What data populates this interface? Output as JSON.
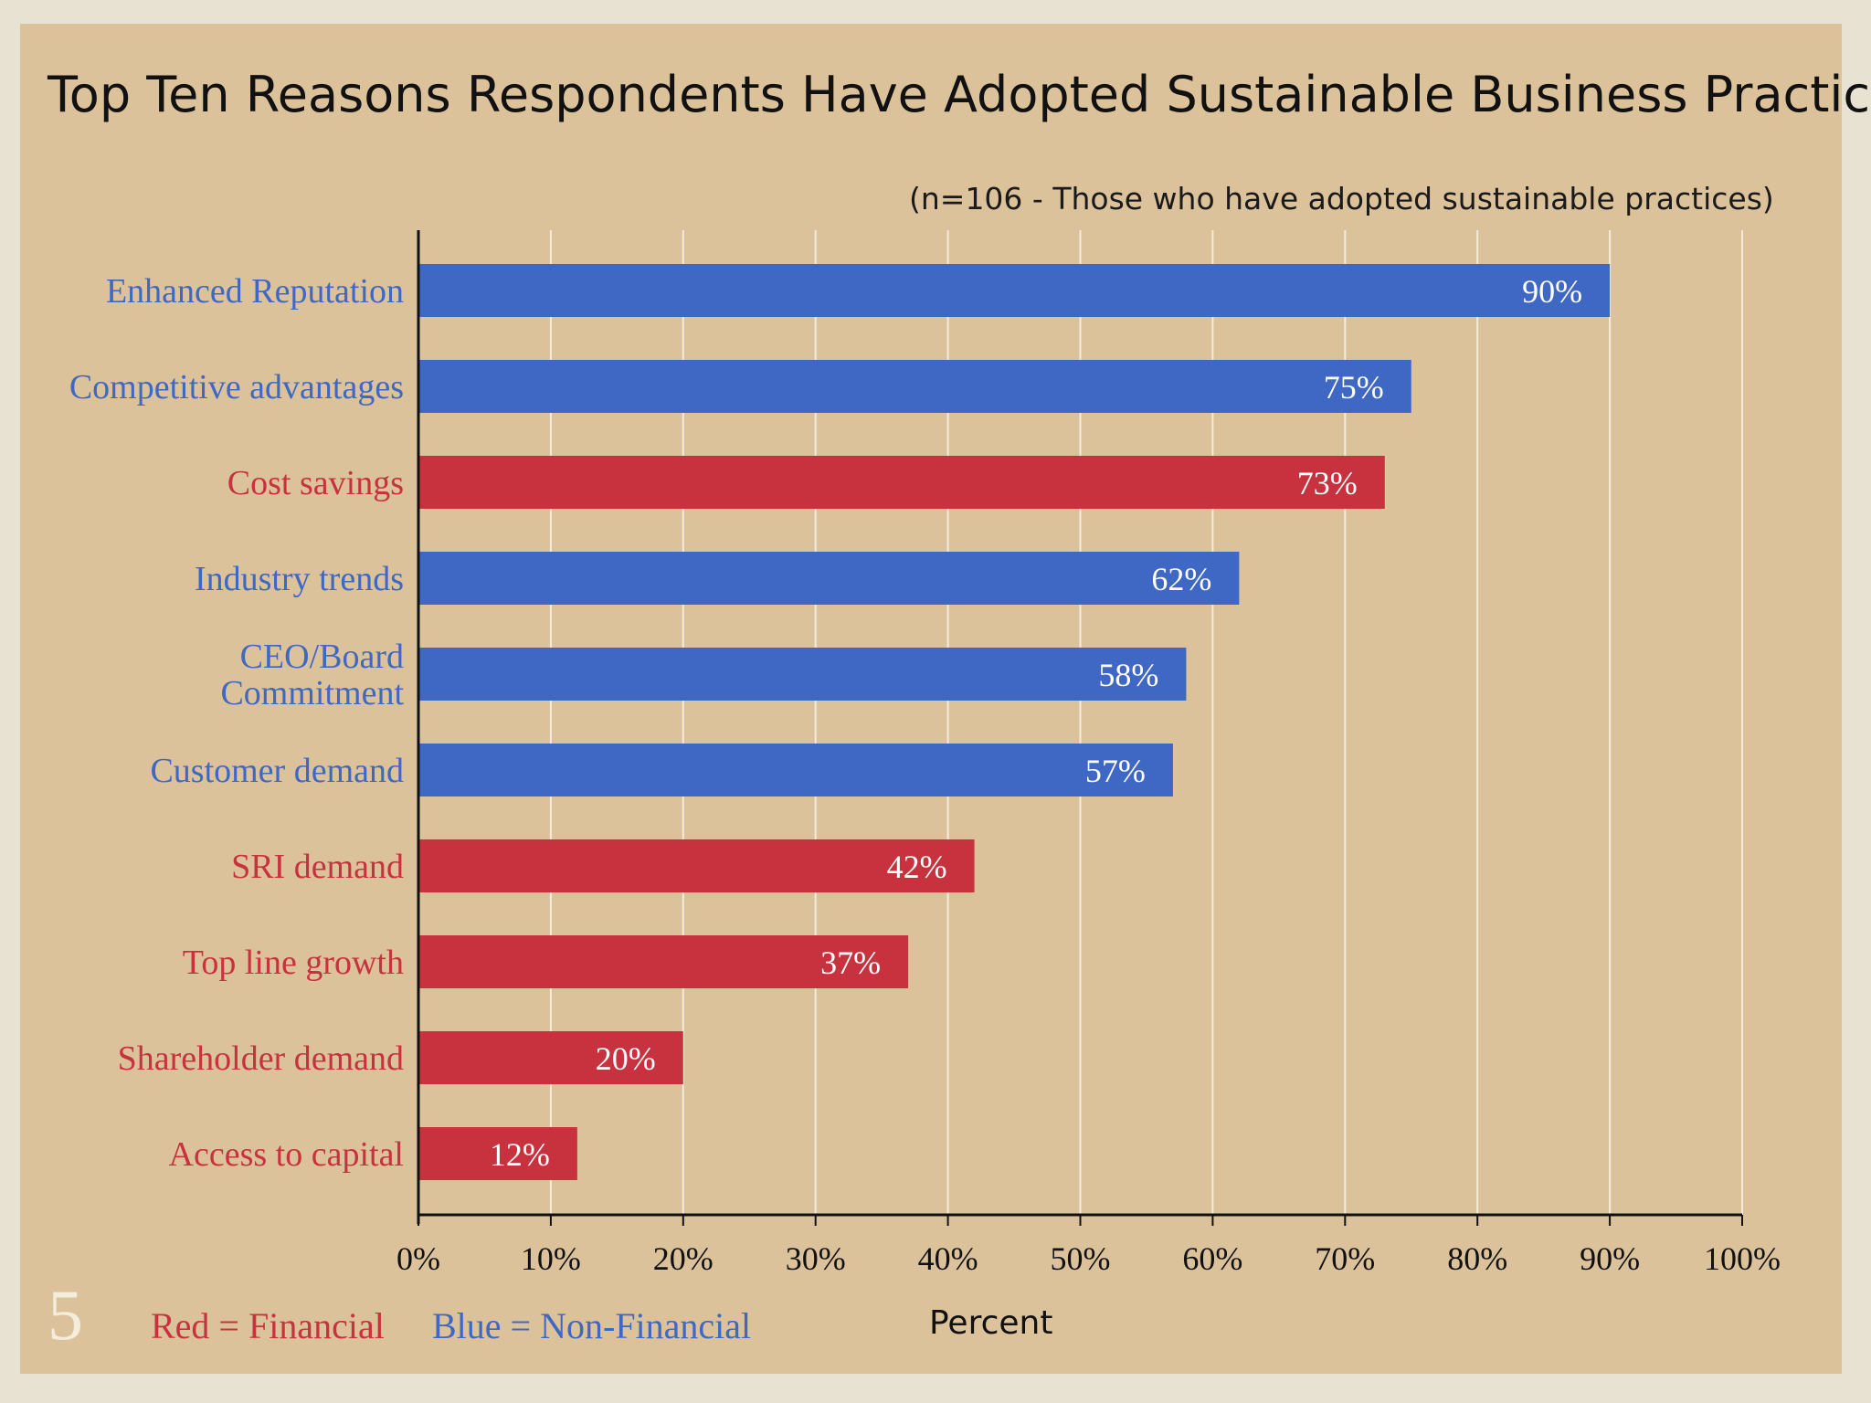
{
  "page_number": "5",
  "legend": {
    "financial_label": "Red = Financial",
    "nonfinancial_label": "Blue = Non-Financial"
  },
  "colors": {
    "financial": "#c8323e",
    "nonfinancial": "#3f68c4",
    "background": "#dcc29a"
  },
  "chart_data": {
    "type": "bar",
    "orientation": "horizontal",
    "title": "Top Ten Reasons Respondents Have Adopted Sustainable Business Practices",
    "subtitle": "(n=106 - Those who have adopted sustainable practices)",
    "xlabel": "Percent",
    "ylabel": "",
    "xlim": [
      0,
      100
    ],
    "x_ticks": [
      "0%",
      "10%",
      "20%",
      "30%",
      "40%",
      "50%",
      "60%",
      "70%",
      "80%",
      "90%",
      "100%"
    ],
    "grid": "vertical",
    "categories": [
      [
        "Enhanced Reputation"
      ],
      [
        "Competitive advantages"
      ],
      [
        "Cost savings"
      ],
      [
        "Industry trends"
      ],
      [
        "CEO/Board",
        "Commitment"
      ],
      [
        "Customer demand"
      ],
      [
        "SRI demand"
      ],
      [
        "Top line growth"
      ],
      [
        "Shareholder demand"
      ],
      [
        "Access to capital"
      ]
    ],
    "values": [
      90,
      75,
      73,
      62,
      58,
      57,
      42,
      37,
      20,
      12
    ],
    "value_labels": [
      "90%",
      "75%",
      "73%",
      "62%",
      "58%",
      "57%",
      "42%",
      "37%",
      "20%",
      "12%"
    ],
    "groups": [
      "non-financial",
      "non-financial",
      "financial",
      "non-financial",
      "non-financial",
      "non-financial",
      "financial",
      "financial",
      "financial",
      "financial"
    ]
  }
}
